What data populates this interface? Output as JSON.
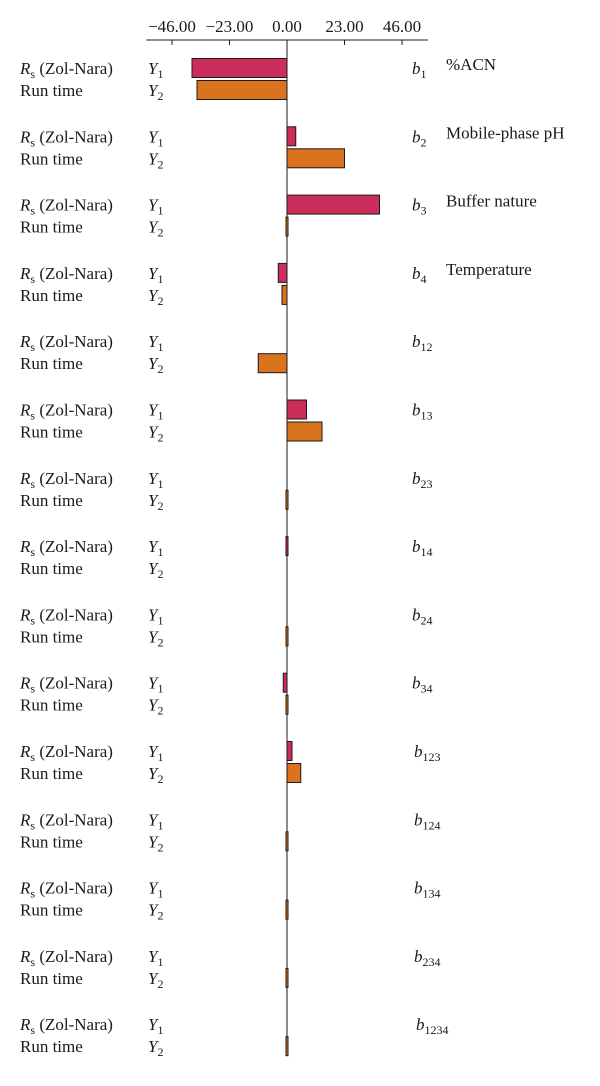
{
  "chart_data": {
    "type": "bar",
    "orientation": "horizontal",
    "title": "",
    "xlabel": "",
    "ylabel": "",
    "xlim": [
      -57.5,
      57.5
    ],
    "x_ticks": [
      -46,
      -23,
      0,
      23,
      46
    ],
    "x_tick_labels": [
      "−46.00",
      "−23.00",
      "0.00",
      "23.00",
      "46.00"
    ],
    "grid": false,
    "legend": "none",
    "response_labels": {
      "y1": {
        "name_main": "R",
        "name_sub": "s",
        "name_rest": " (Zol-Nara)",
        "sym": "Y",
        "sym_sub": "1"
      },
      "y2": {
        "name_main": "",
        "name_sub": "",
        "name_rest": "Run time",
        "sym": "Y",
        "sym_sub": "2"
      }
    },
    "colors": {
      "y1": "#cc2e5c",
      "y2": "#d9731d",
      "axis": "#1a1a1a"
    },
    "terms": [
      {
        "coef": "b",
        "sub": "1",
        "factor": "%ACN",
        "y1": -38.0,
        "y2": -36.0
      },
      {
        "coef": "b",
        "sub": "2",
        "factor": "Mobile-phase pH",
        "y1": 3.5,
        "y2": 23.0
      },
      {
        "coef": "b",
        "sub": "3",
        "factor": "Buffer nature",
        "y1": 37.0,
        "y2": -0.5
      },
      {
        "coef": "b",
        "sub": "4",
        "factor": "Temperature",
        "y1": -3.5,
        "y2": -2.0
      },
      {
        "coef": "b",
        "sub": "12",
        "factor": "",
        "y1": 0,
        "y2": -11.5
      },
      {
        "coef": "b",
        "sub": "13",
        "factor": "",
        "y1": 7.8,
        "y2": 14.0
      },
      {
        "coef": "b",
        "sub": "23",
        "factor": "",
        "y1": 0,
        "y2": -0.5
      },
      {
        "coef": "b",
        "sub": "14",
        "factor": "",
        "y1": -0.4,
        "y2": 0
      },
      {
        "coef": "b",
        "sub": "24",
        "factor": "",
        "y1": 0,
        "y2": -0.4
      },
      {
        "coef": "b",
        "sub": "34",
        "factor": "",
        "y1": -1.5,
        "y2": -0.4
      },
      {
        "coef": "b",
        "sub": "123",
        "factor": "",
        "y1": 2.0,
        "y2": 5.5
      },
      {
        "coef": "b",
        "sub": "124",
        "factor": "",
        "y1": 0,
        "y2": -0.4
      },
      {
        "coef": "b",
        "sub": "134",
        "factor": "",
        "y1": 0,
        "y2": -0.4
      },
      {
        "coef": "b",
        "sub": "234",
        "factor": "",
        "y1": 0,
        "y2": -0.4
      },
      {
        "coef": "b",
        "sub": "1234",
        "factor": "",
        "y1": 0,
        "y2": -0.4
      }
    ]
  }
}
